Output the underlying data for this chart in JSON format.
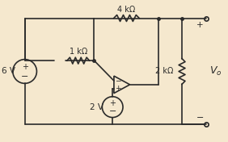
{
  "bg_color": "#f5e8ce",
  "line_color": "#2a2a2a",
  "text_color": "#2a2a2a",
  "figsize": [
    2.82,
    1.76
  ],
  "dpi": 100,
  "labels": {
    "r_top": "4 kΩ",
    "r_mid": "1 kΩ",
    "r_right": "2 kΩ",
    "vs_left": "6 V",
    "vs_mid": "2 V",
    "vo": "Vₒ"
  }
}
